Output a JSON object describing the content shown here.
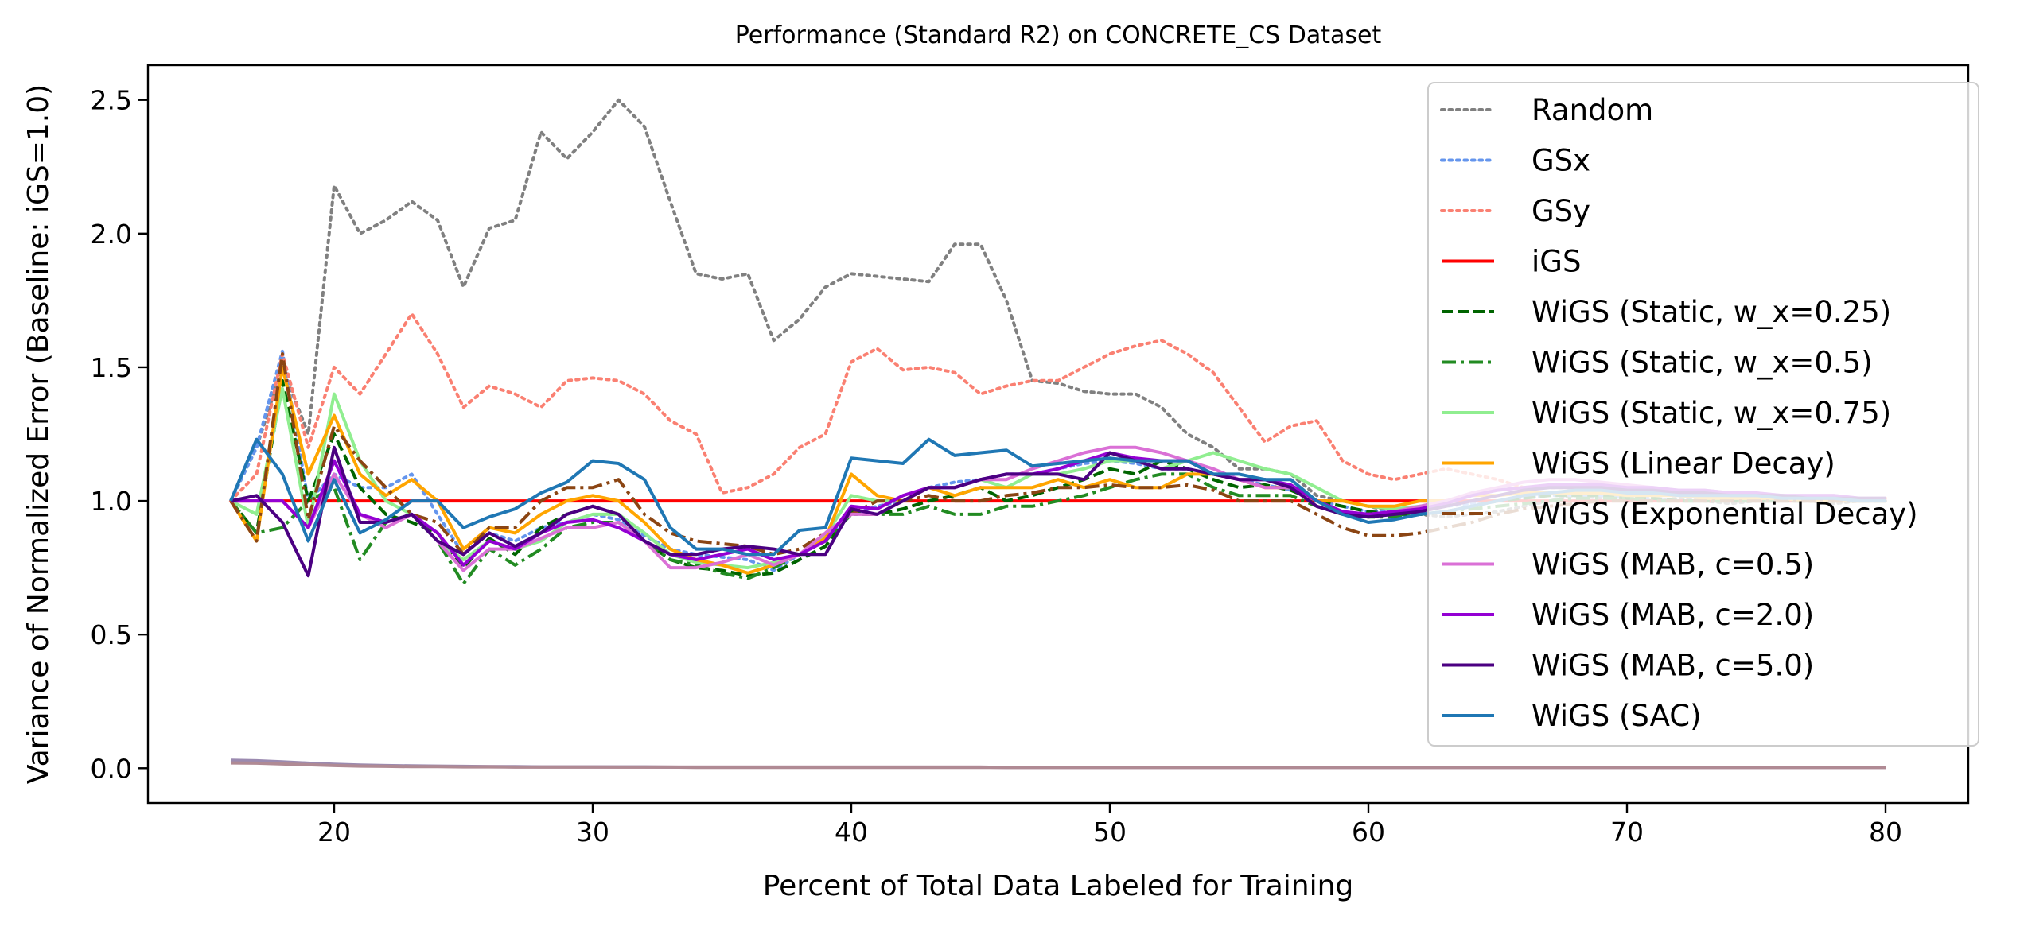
{
  "chart_data": {
    "type": "line",
    "title": "Performance (Standard R2) on CONCRETE_CS Dataset",
    "xlabel": "Percent of Total Data Labeled for Training",
    "ylabel": "Variance of Normalized Error (Baseline: iGS=1.0)",
    "xlim": [
      12.8,
      83.2
    ],
    "ylim": [
      -0.13,
      2.63
    ],
    "xticks": [
      20,
      30,
      40,
      50,
      60,
      70,
      80
    ],
    "yticks": [
      0.0,
      0.5,
      1.0,
      1.5,
      2.0,
      2.5
    ],
    "ytick_labels": [
      "0.0",
      "0.5",
      "1.0",
      "1.5",
      "2.0",
      "2.5"
    ],
    "grid": false,
    "legend_position": "upper right",
    "x": [
      16,
      17,
      18,
      19,
      20,
      21,
      22,
      23,
      24,
      25,
      26,
      27,
      28,
      29,
      30,
      31,
      32,
      33,
      34,
      35,
      36,
      37,
      38,
      39,
      40,
      41,
      42,
      43,
      44,
      45,
      46,
      47,
      48,
      49,
      50,
      51,
      52,
      53,
      54,
      55,
      56,
      57,
      58,
      59,
      60,
      61,
      62,
      63,
      64,
      65,
      66,
      67,
      68,
      69,
      70,
      71,
      72,
      73,
      74,
      75,
      76,
      77,
      78,
      79,
      80
    ],
    "series": [
      {
        "name": "Random",
        "color": "#808080",
        "style": "dotted",
        "values": [
          1.0,
          1.2,
          1.5,
          1.25,
          2.18,
          2.0,
          2.05,
          2.12,
          2.05,
          1.8,
          2.02,
          2.05,
          2.38,
          2.28,
          2.38,
          2.5,
          2.4,
          2.12,
          1.85,
          1.83,
          1.85,
          1.6,
          1.68,
          1.8,
          1.85,
          1.84,
          1.83,
          1.82,
          1.96,
          1.96,
          1.75,
          1.45,
          1.44,
          1.41,
          1.4,
          1.4,
          1.35,
          1.25,
          1.2,
          1.12,
          1.12,
          1.1,
          1.02,
          1.0,
          0.98,
          0.96,
          0.95,
          0.94,
          0.95,
          0.96,
          0.98,
          1.0,
          1.02,
          1.01,
          1.0,
          1.0,
          1.01,
          1.0,
          0.99,
          1.0,
          1.01,
          1.0,
          0.99,
          1.0,
          1.0
        ]
      },
      {
        "name": "GSx",
        "color": "#6495ed",
        "style": "dotted",
        "values": [
          1.0,
          1.2,
          1.56,
          1.0,
          1.1,
          1.05,
          1.05,
          1.1,
          0.95,
          0.8,
          0.88,
          0.85,
          0.9,
          0.92,
          0.95,
          0.93,
          0.87,
          0.82,
          0.8,
          0.79,
          0.78,
          0.74,
          0.8,
          0.85,
          0.95,
          0.98,
          1.0,
          1.05,
          1.07,
          1.08,
          1.1,
          1.1,
          1.12,
          1.14,
          1.15,
          1.14,
          1.12,
          1.12,
          1.1,
          1.08,
          1.06,
          1.04,
          1.0,
          0.98,
          0.96,
          0.96,
          0.97,
          0.98,
          0.99,
          1.0,
          1.01,
          1.02,
          1.02,
          1.02,
          1.01,
          1.01,
          1.0,
          1.0,
          1.0,
          1.0,
          1.0,
          1.0,
          1.0,
          1.0,
          1.0
        ]
      },
      {
        "name": "GSy",
        "color": "#fa8072",
        "style": "dotted",
        "values": [
          1.0,
          1.1,
          1.55,
          1.2,
          1.5,
          1.4,
          1.55,
          1.7,
          1.55,
          1.35,
          1.43,
          1.4,
          1.35,
          1.45,
          1.46,
          1.45,
          1.4,
          1.3,
          1.25,
          1.03,
          1.05,
          1.1,
          1.2,
          1.25,
          1.52,
          1.57,
          1.49,
          1.5,
          1.48,
          1.4,
          1.43,
          1.45,
          1.45,
          1.5,
          1.55,
          1.58,
          1.6,
          1.55,
          1.48,
          1.35,
          1.22,
          1.28,
          1.3,
          1.15,
          1.1,
          1.08,
          1.1,
          1.12,
          1.1,
          1.08,
          1.05,
          1.05,
          1.05,
          1.04,
          1.03,
          1.03,
          1.02,
          1.02,
          1.02,
          1.02,
          1.01,
          1.01,
          1.01,
          1.01,
          1.01
        ]
      },
      {
        "name": "iGS",
        "color": "#ff0000",
        "style": "solid",
        "values": [
          1.0,
          1.0,
          1.0,
          1.0,
          1.0,
          1.0,
          1.0,
          1.0,
          1.0,
          1.0,
          1.0,
          1.0,
          1.0,
          1.0,
          1.0,
          1.0,
          1.0,
          1.0,
          1.0,
          1.0,
          1.0,
          1.0,
          1.0,
          1.0,
          1.0,
          1.0,
          1.0,
          1.0,
          1.0,
          1.0,
          1.0,
          1.0,
          1.0,
          1.0,
          1.0,
          1.0,
          1.0,
          1.0,
          1.0,
          1.0,
          1.0,
          1.0,
          1.0,
          1.0,
          1.0,
          1.0,
          1.0,
          1.0,
          1.0,
          1.0,
          1.0,
          1.0,
          1.0,
          1.0,
          1.0,
          1.0,
          1.0,
          1.0,
          1.0,
          1.0,
          1.0,
          1.0,
          1.0,
          1.0,
          1.0
        ]
      },
      {
        "name": "WiGS (Static, w_x=0.25)",
        "color": "#006400",
        "style": "dashed",
        "values": [
          1.0,
          0.88,
          1.45,
          1.0,
          1.25,
          1.05,
          0.95,
          0.92,
          0.88,
          0.75,
          0.86,
          0.8,
          0.9,
          0.95,
          0.98,
          0.95,
          0.85,
          0.78,
          0.75,
          0.74,
          0.72,
          0.73,
          0.78,
          0.83,
          0.96,
          0.95,
          0.97,
          1.0,
          1.02,
          1.05,
          1.0,
          1.02,
          1.05,
          1.08,
          1.12,
          1.1,
          1.15,
          1.12,
          1.08,
          1.05,
          1.06,
          1.04,
          1.0,
          0.98,
          0.96,
          0.95,
          0.95,
          0.96,
          0.98,
          1.0,
          1.01,
          1.02,
          1.02,
          1.02,
          1.01,
          1.01,
          1.0,
          1.0,
          1.0,
          1.0,
          1.0,
          1.0,
          1.0,
          1.0,
          1.0
        ]
      },
      {
        "name": "WiGS (Static, w_x=0.5)",
        "color": "#228b22",
        "style": "dashdot",
        "values": [
          1.0,
          0.88,
          0.9,
          1.0,
          1.05,
          0.78,
          0.92,
          0.95,
          0.85,
          0.69,
          0.82,
          0.76,
          0.82,
          0.9,
          0.92,
          0.92,
          0.85,
          0.78,
          0.76,
          0.73,
          0.71,
          0.75,
          0.8,
          0.85,
          0.95,
          0.95,
          0.95,
          0.98,
          0.95,
          0.95,
          0.98,
          0.98,
          1.0,
          1.02,
          1.05,
          1.08,
          1.1,
          1.1,
          1.05,
          1.02,
          1.02,
          1.02,
          0.98,
          0.95,
          0.94,
          0.94,
          0.95,
          0.96,
          0.97,
          0.98,
          0.99,
          1.0,
          1.01,
          1.01,
          1.01,
          1.0,
          1.0,
          1.0,
          1.0,
          1.0,
          1.0,
          1.0,
          1.0,
          1.0,
          1.0
        ]
      },
      {
        "name": "WiGS (Static, w_x=0.75)",
        "color": "#90ee90",
        "style": "solid",
        "values": [
          1.0,
          0.95,
          1.42,
          0.9,
          1.4,
          1.15,
          1.0,
          0.95,
          0.85,
          0.78,
          0.85,
          0.82,
          0.85,
          0.92,
          0.95,
          0.95,
          0.88,
          0.8,
          0.77,
          0.76,
          0.75,
          0.77,
          0.8,
          0.87,
          1.02,
          1.0,
          1.0,
          1.05,
          1.05,
          1.08,
          1.05,
          1.1,
          1.1,
          1.12,
          1.15,
          1.15,
          1.12,
          1.15,
          1.18,
          1.15,
          1.12,
          1.1,
          1.05,
          1.0,
          0.98,
          0.97,
          0.98,
          1.0,
          1.02,
          1.04,
          1.05,
          1.06,
          1.06,
          1.05,
          1.05,
          1.04,
          1.03,
          1.03,
          1.02,
          1.02,
          1.01,
          1.01,
          1.01,
          1.01,
          1.01
        ]
      },
      {
        "name": "WiGS (Linear Decay)",
        "color": "#ffa500",
        "style": "solid",
        "values": [
          1.0,
          0.85,
          1.5,
          1.1,
          1.32,
          1.1,
          1.02,
          1.08,
          1.0,
          0.82,
          0.9,
          0.88,
          0.95,
          1.0,
          1.02,
          1.0,
          0.92,
          0.82,
          0.78,
          0.76,
          0.73,
          0.76,
          0.8,
          0.86,
          1.1,
          1.02,
          1.0,
          1.05,
          1.02,
          1.05,
          1.05,
          1.05,
          1.08,
          1.05,
          1.08,
          1.05,
          1.05,
          1.1,
          1.1,
          1.08,
          1.05,
          1.05,
          1.0,
          1.0,
          0.98,
          0.98,
          1.0,
          1.0,
          1.02,
          1.02,
          1.03,
          1.03,
          1.03,
          1.03,
          1.02,
          1.02,
          1.02,
          1.01,
          1.01,
          1.01,
          1.01,
          1.0,
          1.0,
          1.0,
          1.0
        ]
      },
      {
        "name": "WiGS (Exponential Decay)",
        "color": "#8b4513",
        "style": "dashdot",
        "values": [
          1.0,
          0.85,
          1.55,
          0.93,
          1.28,
          1.15,
          1.05,
          0.95,
          0.92,
          0.8,
          0.9,
          0.9,
          1.0,
          1.05,
          1.05,
          1.08,
          0.95,
          0.88,
          0.85,
          0.84,
          0.83,
          0.8,
          0.82,
          0.88,
          0.95,
          1.0,
          1.0,
          1.02,
          1.0,
          1.0,
          1.02,
          1.03,
          1.05,
          1.05,
          1.06,
          1.05,
          1.05,
          1.06,
          1.04,
          1.0,
          1.0,
          1.0,
          0.95,
          0.9,
          0.87,
          0.87,
          0.88,
          0.9,
          0.92,
          0.95,
          0.97,
          0.98,
          0.99,
          1.0,
          1.0,
          1.0,
          1.0,
          1.0,
          1.0,
          1.0,
          1.0,
          1.0,
          1.0,
          1.0,
          1.0
        ]
      },
      {
        "name": "WiGS (MAB, c=0.5)",
        "color": "#da70d6",
        "style": "solid",
        "values": [
          1.0,
          1.0,
          1.0,
          0.9,
          1.1,
          0.95,
          0.9,
          0.95,
          0.85,
          0.74,
          0.82,
          0.82,
          0.86,
          0.9,
          0.9,
          0.92,
          0.85,
          0.75,
          0.75,
          0.77,
          0.8,
          0.76,
          0.8,
          0.88,
          0.95,
          0.95,
          1.0,
          1.05,
          1.05,
          1.08,
          1.08,
          1.12,
          1.15,
          1.18,
          1.2,
          1.2,
          1.18,
          1.15,
          1.12,
          1.08,
          1.05,
          1.05,
          1.0,
          0.96,
          0.95,
          0.96,
          0.98,
          1.0,
          1.03,
          1.05,
          1.07,
          1.08,
          1.08,
          1.07,
          1.06,
          1.05,
          1.04,
          1.04,
          1.03,
          1.03,
          1.02,
          1.02,
          1.02,
          1.01,
          1.01
        ]
      },
      {
        "name": "WiGS (MAB, c=2.0)",
        "color": "#9400d3",
        "style": "solid",
        "values": [
          1.0,
          1.0,
          1.0,
          0.9,
          1.15,
          0.95,
          0.92,
          0.95,
          0.88,
          0.76,
          0.85,
          0.82,
          0.88,
          0.92,
          0.93,
          0.9,
          0.85,
          0.8,
          0.78,
          0.8,
          0.82,
          0.78,
          0.8,
          0.85,
          0.98,
          0.97,
          1.02,
          1.05,
          1.05,
          1.08,
          1.1,
          1.1,
          1.12,
          1.15,
          1.18,
          1.16,
          1.15,
          1.15,
          1.1,
          1.08,
          1.08,
          1.06,
          1.0,
          0.96,
          0.95,
          0.96,
          0.97,
          0.99,
          1.02,
          1.04,
          1.05,
          1.06,
          1.06,
          1.06,
          1.05,
          1.05,
          1.04,
          1.04,
          1.03,
          1.03,
          1.02,
          1.02,
          1.02,
          1.01,
          1.01
        ]
      },
      {
        "name": "WiGS (MAB, c=5.0)",
        "color": "#4b0082",
        "style": "solid",
        "values": [
          1.0,
          1.02,
          0.92,
          0.72,
          1.2,
          0.92,
          0.92,
          0.95,
          0.85,
          0.8,
          0.88,
          0.83,
          0.88,
          0.95,
          0.98,
          0.95,
          0.85,
          0.8,
          0.8,
          0.82,
          0.83,
          0.82,
          0.8,
          0.8,
          0.97,
          0.95,
          1.0,
          1.05,
          1.05,
          1.08,
          1.1,
          1.1,
          1.1,
          1.08,
          1.18,
          1.15,
          1.12,
          1.12,
          1.1,
          1.08,
          1.08,
          1.05,
          0.98,
          0.95,
          0.94,
          0.95,
          0.96,
          0.98,
          1.0,
          1.02,
          1.04,
          1.05,
          1.05,
          1.05,
          1.04,
          1.04,
          1.03,
          1.03,
          1.02,
          1.02,
          1.02,
          1.01,
          1.01,
          1.01,
          1.01
        ]
      },
      {
        "name": "WiGS (SAC)",
        "color": "#1f77b4",
        "style": "solid",
        "values": [
          1.0,
          1.23,
          1.1,
          0.85,
          1.08,
          0.88,
          0.93,
          1.0,
          1.0,
          0.9,
          0.94,
          0.97,
          1.03,
          1.07,
          1.15,
          1.14,
          1.08,
          0.9,
          0.82,
          0.82,
          0.8,
          0.8,
          0.89,
          0.9,
          1.16,
          1.15,
          1.14,
          1.23,
          1.17,
          1.18,
          1.19,
          1.13,
          1.14,
          1.15,
          1.16,
          1.15,
          1.15,
          1.15,
          1.1,
          1.1,
          1.08,
          1.08,
          1.0,
          0.95,
          0.92,
          0.93,
          0.95,
          0.96,
          0.98,
          1.0,
          1.02,
          1.03,
          1.04,
          1.04,
          1.03,
          1.03,
          1.02,
          1.02,
          1.02,
          1.02,
          1.01,
          1.01,
          1.01,
          1.0,
          1.0
        ]
      }
    ],
    "bottom_lines": [
      {
        "color": "#e8a7a7",
        "values": [
          0.025,
          0.024,
          0.02,
          0.016,
          0.012,
          0.01,
          0.009,
          0.008,
          0.007,
          0.006,
          0.006,
          0.005,
          0.005,
          0.005,
          0.005,
          0.004,
          0.004,
          0.004,
          0.004,
          0.004,
          0.004,
          0.004,
          0.004,
          0.004,
          0.004,
          0.004,
          0.004,
          0.004,
          0.004,
          0.004,
          0.003,
          0.003,
          0.003,
          0.003,
          0.003,
          0.003,
          0.003,
          0.003,
          0.003,
          0.003,
          0.003,
          0.003,
          0.003,
          0.003,
          0.003,
          0.003,
          0.003,
          0.003,
          0.003,
          0.003,
          0.003,
          0.003,
          0.003,
          0.003,
          0.003,
          0.003,
          0.003,
          0.003,
          0.003,
          0.003,
          0.003,
          0.003,
          0.003,
          0.003,
          0.003
        ]
      },
      {
        "color": "#9b8ab0",
        "values": [
          0.03,
          0.028,
          0.024,
          0.019,
          0.015,
          0.012,
          0.01,
          0.009,
          0.008,
          0.007,
          0.006,
          0.006,
          0.005,
          0.005,
          0.005,
          0.005,
          0.005,
          0.004,
          0.004,
          0.004,
          0.004,
          0.004,
          0.004,
          0.004,
          0.004,
          0.004,
          0.004,
          0.004,
          0.004,
          0.004,
          0.003,
          0.003,
          0.003,
          0.003,
          0.003,
          0.003,
          0.003,
          0.003,
          0.003,
          0.003,
          0.003,
          0.003,
          0.003,
          0.003,
          0.003,
          0.003,
          0.003,
          0.003,
          0.003,
          0.003,
          0.003,
          0.003,
          0.003,
          0.003,
          0.003,
          0.003,
          0.003,
          0.003,
          0.003,
          0.003,
          0.003,
          0.003,
          0.003,
          0.003,
          0.003
        ]
      },
      {
        "color": "#b08a94",
        "values": [
          0.02,
          0.019,
          0.016,
          0.013,
          0.01,
          0.008,
          0.007,
          0.006,
          0.006,
          0.005,
          0.005,
          0.004,
          0.004,
          0.004,
          0.004,
          0.004,
          0.004,
          0.004,
          0.003,
          0.003,
          0.003,
          0.003,
          0.003,
          0.003,
          0.003,
          0.003,
          0.003,
          0.003,
          0.003,
          0.003,
          0.003,
          0.003,
          0.003,
          0.003,
          0.003,
          0.003,
          0.003,
          0.003,
          0.003,
          0.003,
          0.003,
          0.003,
          0.003,
          0.003,
          0.003,
          0.003,
          0.003,
          0.003,
          0.003,
          0.003,
          0.003,
          0.003,
          0.003,
          0.003,
          0.003,
          0.003,
          0.003,
          0.003,
          0.003,
          0.003,
          0.003,
          0.003,
          0.003,
          0.003,
          0.003
        ]
      }
    ]
  }
}
